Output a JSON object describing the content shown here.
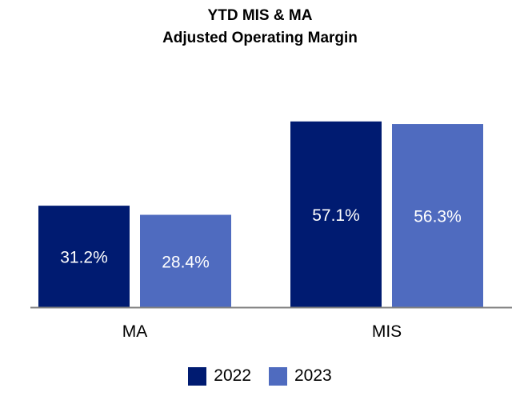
{
  "chart_data": {
    "type": "bar",
    "title": "YTD MIS & MA",
    "subtitle": "Adjusted Operating Margin",
    "categories": [
      "MA",
      "MIS"
    ],
    "series": [
      {
        "name": "2022",
        "values": [
          31.2,
          57.1
        ],
        "labels": [
          "31.2%",
          "57.1%"
        ],
        "color": "#001b71"
      },
      {
        "name": "2023",
        "values": [
          28.4,
          56.3
        ],
        "labels": [
          "28.4%",
          "56.3%"
        ],
        "color": "#4f6bbf"
      }
    ],
    "ylim": [
      0,
      60
    ],
    "grid": false,
    "legend_position": "bottom",
    "xlabel": "",
    "ylabel": ""
  }
}
